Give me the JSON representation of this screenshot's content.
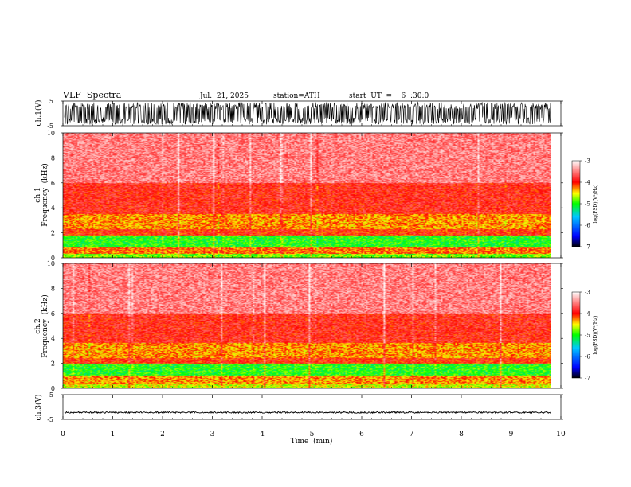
{
  "header": {
    "title": "VLF  Spectra",
    "date": "Jul.  21, 2025",
    "station": "station=ATH",
    "start_ut": "start  UT  =    6  :30:0"
  },
  "chart_data": [
    {
      "type": "line",
      "name": "ch1-waveform",
      "ylabel": "ch.1(V)",
      "ylim": [
        -5,
        5
      ],
      "yticks": [
        "5",
        "-5"
      ],
      "xlim": [
        0,
        10
      ],
      "x_extent_min": 9.8,
      "amplitude_envelope": [
        -4.5,
        4.5
      ],
      "trace_color": "#000000"
    },
    {
      "type": "heatmap",
      "name": "ch1-spectrogram",
      "ylabel": "ch.1\nFrequency  (kHz)",
      "ylim": [
        0,
        10
      ],
      "yticks": [
        "0",
        "2",
        "4",
        "6",
        "8",
        "10"
      ],
      "xlim": [
        0,
        10
      ],
      "x_extent_min": 9.8,
      "colorbar": {
        "label": "log(PSD)(V²/Hz)",
        "range": [
          -7,
          -3
        ],
        "ticks": [
          "-3",
          "-4",
          "-5",
          "-6",
          "-7"
        ],
        "colors": [
          "#000000",
          "#0000ff",
          "#00c8ff",
          "#00ff00",
          "#ffff00",
          "#ff0000",
          "#ffffff"
        ]
      },
      "bands_khz": [
        {
          "from": 0.0,
          "to": 0.3,
          "log_psd": -4.8
        },
        {
          "from": 0.3,
          "to": 0.8,
          "log_psd": -4.2
        },
        {
          "from": 0.8,
          "to": 1.8,
          "log_psd": -5.0
        },
        {
          "from": 1.8,
          "to": 2.3,
          "log_psd": -4.0
        },
        {
          "from": 2.3,
          "to": 3.5,
          "log_psd": -4.3
        },
        {
          "from": 3.5,
          "to": 6.0,
          "log_psd": -3.9
        },
        {
          "from": 6.0,
          "to": 10.0,
          "log_psd": -3.5
        }
      ]
    },
    {
      "type": "heatmap",
      "name": "ch2-spectrogram",
      "ylabel": "ch.2\nFrequency  (kHz)",
      "ylim": [
        0,
        10
      ],
      "yticks": [
        "0",
        "2",
        "4",
        "6",
        "8",
        "10"
      ],
      "xlim": [
        0,
        10
      ],
      "x_extent_min": 9.8,
      "colorbar": {
        "label": "log(PSD)(V²/Hz)",
        "range": [
          -7,
          -3
        ],
        "ticks": [
          "-3",
          "-4",
          "-5",
          "-6",
          "-7"
        ],
        "colors": [
          "#000000",
          "#0000ff",
          "#00c8ff",
          "#00ff00",
          "#ffff00",
          "#ff0000",
          "#ffffff"
        ]
      },
      "bands_khz": [
        {
          "from": 0.0,
          "to": 0.3,
          "log_psd": -4.6
        },
        {
          "from": 0.3,
          "to": 1.0,
          "log_psd": -4.3
        },
        {
          "from": 1.0,
          "to": 2.0,
          "log_psd": -5.0
        },
        {
          "from": 2.0,
          "to": 2.4,
          "log_psd": -4.0
        },
        {
          "from": 2.4,
          "to": 3.6,
          "log_psd": -4.3
        },
        {
          "from": 3.6,
          "to": 6.0,
          "log_psd": -3.9
        },
        {
          "from": 6.0,
          "to": 10.0,
          "log_psd": -3.5
        }
      ]
    },
    {
      "type": "line",
      "name": "ch3-waveform",
      "ylabel": "ch.3(V)",
      "ylim": [
        -5,
        5
      ],
      "yticks": [
        "5",
        "-5"
      ],
      "xlim": [
        0,
        10
      ],
      "x_extent_min": 9.8,
      "baseline_v": -2.2,
      "amplitude_envelope": [
        -2.5,
        -1.9
      ],
      "trace_color": "#000000"
    }
  ],
  "xaxis": {
    "xlabel": "Time  (min)",
    "ticks": [
      "0",
      "1",
      "2",
      "3",
      "4",
      "5",
      "6",
      "7",
      "8",
      "9",
      "10"
    ]
  }
}
